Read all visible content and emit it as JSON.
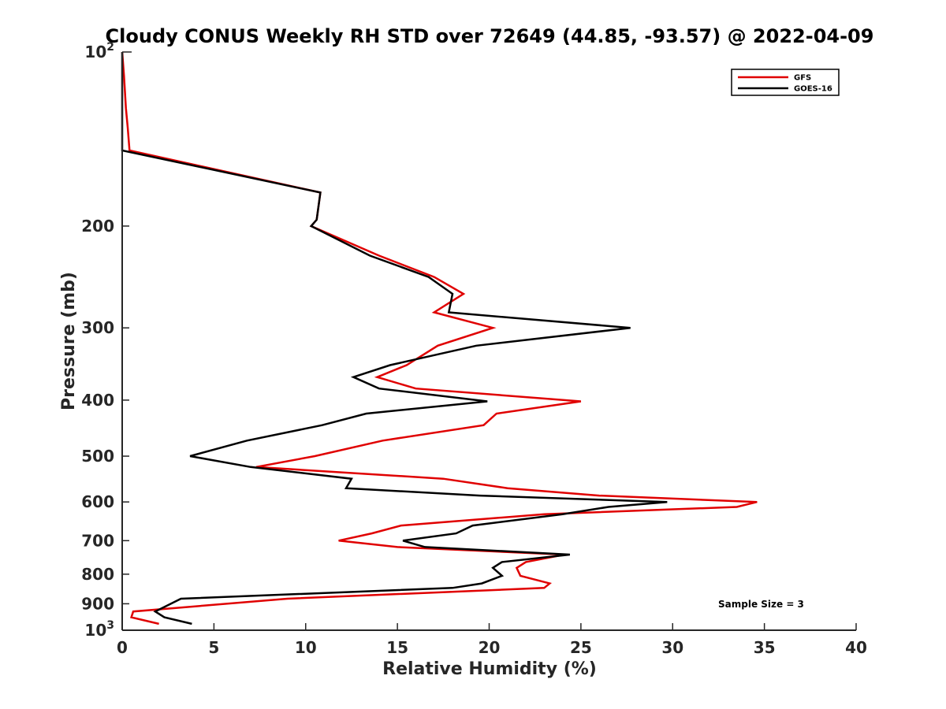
{
  "chart_data": {
    "type": "line",
    "title": "Cloudy CONUS Weekly RH STD over 72649 (44.85, -93.57) @ 2022-04-09",
    "xlabel": "Relative Humidity (%)",
    "ylabel": "Pressure (mb)",
    "xlim": [
      0,
      40
    ],
    "ylim": [
      100,
      1000
    ],
    "y_scale": "log",
    "y_reversed": true,
    "x_ticks": [
      0,
      5,
      10,
      15,
      20,
      25,
      30,
      35,
      40
    ],
    "x_tick_labels": [
      "0",
      "5",
      "10",
      "15",
      "20",
      "25",
      "30",
      "35",
      "40"
    ],
    "y_ticks": [
      200,
      300,
      400,
      500,
      600,
      700,
      800,
      900
    ],
    "y_tick_labels": [
      "200",
      "300",
      "400",
      "500",
      "600",
      "700",
      "800",
      "900"
    ],
    "y_decade_labels": [
      {
        "value": 100,
        "base": "10",
        "exp": "2"
      },
      {
        "value": 1000,
        "base": "10",
        "exp": "3"
      }
    ],
    "grid": false,
    "legend_position": "top-right",
    "annotation": "Sample Size = 3",
    "series": [
      {
        "name": "GFS",
        "color": "#e00000",
        "points": [
          [
            0.0,
            100
          ],
          [
            0.1,
            110
          ],
          [
            0.2,
            125
          ],
          [
            0.3,
            135
          ],
          [
            0.4,
            148
          ],
          [
            10.8,
            175
          ],
          [
            10.6,
            195
          ],
          [
            10.3,
            200
          ],
          [
            14.0,
            225
          ],
          [
            17.0,
            245
          ],
          [
            18.6,
            262
          ],
          [
            17.0,
            282
          ],
          [
            20.2,
            300
          ],
          [
            17.2,
            322
          ],
          [
            15.5,
            348
          ],
          [
            13.9,
            365
          ],
          [
            16.0,
            382
          ],
          [
            25.0,
            402
          ],
          [
            20.4,
            422
          ],
          [
            19.7,
            442
          ],
          [
            14.2,
            470
          ],
          [
            10.5,
            500
          ],
          [
            7.3,
            522
          ],
          [
            17.5,
            547
          ],
          [
            21.0,
            568
          ],
          [
            26.0,
            585
          ],
          [
            34.6,
            600
          ],
          [
            33.5,
            612
          ],
          [
            23.0,
            630
          ],
          [
            15.2,
            659
          ],
          [
            13.6,
            680
          ],
          [
            11.8,
            700
          ],
          [
            15.0,
            718
          ],
          [
            24.1,
            740
          ],
          [
            22.0,
            762
          ],
          [
            21.5,
            780
          ],
          [
            21.7,
            805
          ],
          [
            23.3,
            830
          ],
          [
            23.0,
            845
          ],
          [
            9.0,
            882
          ],
          [
            0.6,
            928
          ],
          [
            0.5,
            950
          ],
          [
            2.0,
            975
          ]
        ]
      },
      {
        "name": "GOES-16",
        "color": "#000000",
        "points": [
          [
            0.0,
            100
          ],
          [
            0.0,
            110
          ],
          [
            0.0,
            125
          ],
          [
            0.0,
            135
          ],
          [
            0.0,
            148
          ],
          [
            10.8,
            175
          ],
          [
            10.6,
            195
          ],
          [
            10.3,
            200
          ],
          [
            13.5,
            225
          ],
          [
            16.7,
            245
          ],
          [
            18.0,
            262
          ],
          [
            17.8,
            282
          ],
          [
            27.7,
            300
          ],
          [
            19.3,
            322
          ],
          [
            14.6,
            348
          ],
          [
            12.6,
            365
          ],
          [
            14.0,
            382
          ],
          [
            19.9,
            402
          ],
          [
            13.3,
            422
          ],
          [
            10.9,
            442
          ],
          [
            6.8,
            470
          ],
          [
            3.7,
            500
          ],
          [
            7.0,
            522
          ],
          [
            12.5,
            547
          ],
          [
            12.2,
            568
          ],
          [
            19.5,
            585
          ],
          [
            29.7,
            600
          ],
          [
            26.5,
            612
          ],
          [
            24.0,
            630
          ],
          [
            19.1,
            659
          ],
          [
            18.2,
            680
          ],
          [
            15.3,
            700
          ],
          [
            16.5,
            718
          ],
          [
            24.4,
            740
          ],
          [
            20.7,
            762
          ],
          [
            20.2,
            780
          ],
          [
            20.7,
            805
          ],
          [
            19.6,
            830
          ],
          [
            18.0,
            845
          ],
          [
            3.2,
            882
          ],
          [
            1.8,
            928
          ],
          [
            2.3,
            950
          ],
          [
            3.8,
            975
          ]
        ]
      }
    ]
  }
}
